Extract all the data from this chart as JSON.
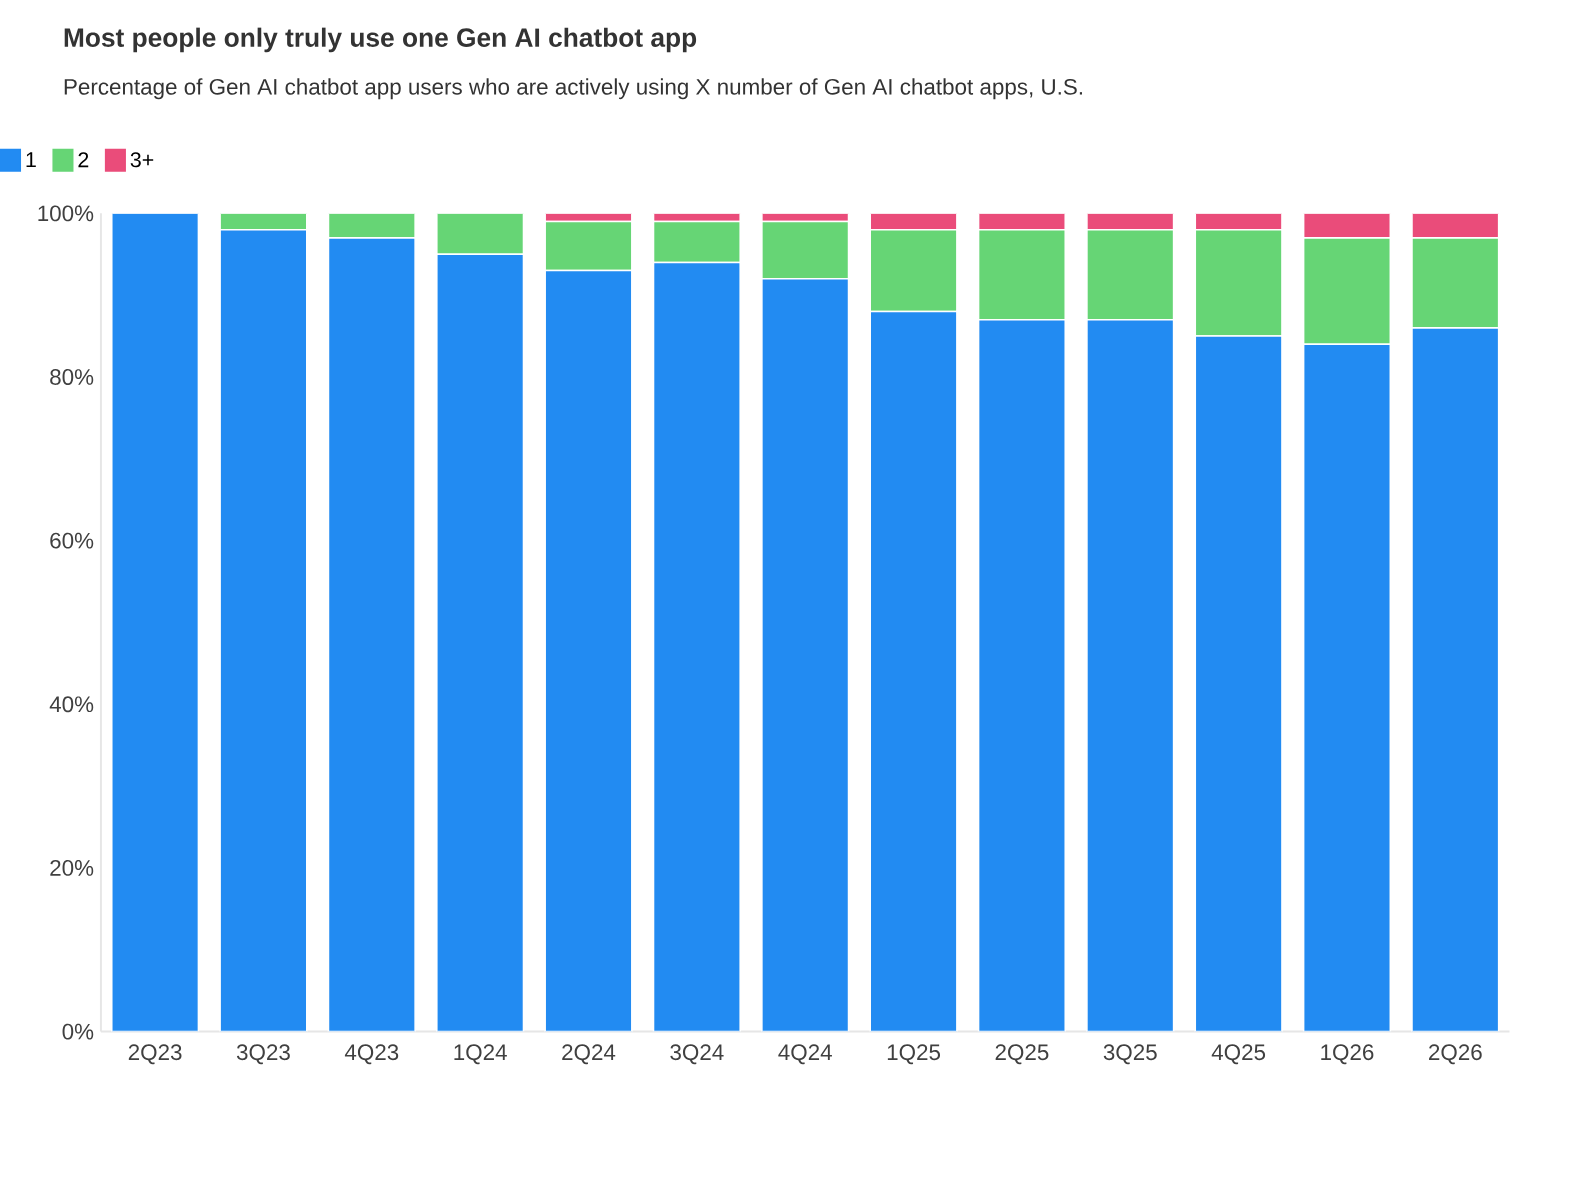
{
  "chart_data": {
    "type": "bar",
    "stacked": true,
    "title": "Most people only truly use one Gen AI chatbot app",
    "subtitle": "Percentage of Gen AI chatbot app users who are actively using X number of Gen AI chatbot apps, U.S.",
    "categories": [
      "2Q23",
      "3Q23",
      "4Q23",
      "1Q24",
      "2Q24",
      "3Q24",
      "4Q24",
      "1Q25",
      "2Q25",
      "3Q25",
      "4Q25",
      "1Q26",
      "2Q26"
    ],
    "series": [
      {
        "name": "1",
        "color": "#228bf2",
        "values": [
          100,
          98,
          97,
          95,
          93,
          94,
          92,
          88,
          87,
          87,
          85,
          84,
          86
        ]
      },
      {
        "name": "2",
        "color": "#66d575",
        "values": [
          0,
          2,
          3,
          5,
          6,
          5,
          7,
          10,
          11,
          11,
          13,
          13,
          11
        ]
      },
      {
        "name": "3+",
        "color": "#ea4c7a",
        "values": [
          0,
          0,
          0,
          0,
          1,
          1,
          1,
          2,
          2,
          2,
          2,
          3,
          3
        ]
      }
    ],
    "ylim": [
      0,
      100
    ],
    "yticks": [
      {
        "value": 0,
        "label": "0%"
      },
      {
        "value": 20,
        "label": "20%"
      },
      {
        "value": 40,
        "label": "40%"
      },
      {
        "value": 60,
        "label": "60%"
      },
      {
        "value": 80,
        "label": "80%"
      },
      {
        "value": 100,
        "label": "100%"
      }
    ],
    "legend": "top left",
    "grid": false
  }
}
